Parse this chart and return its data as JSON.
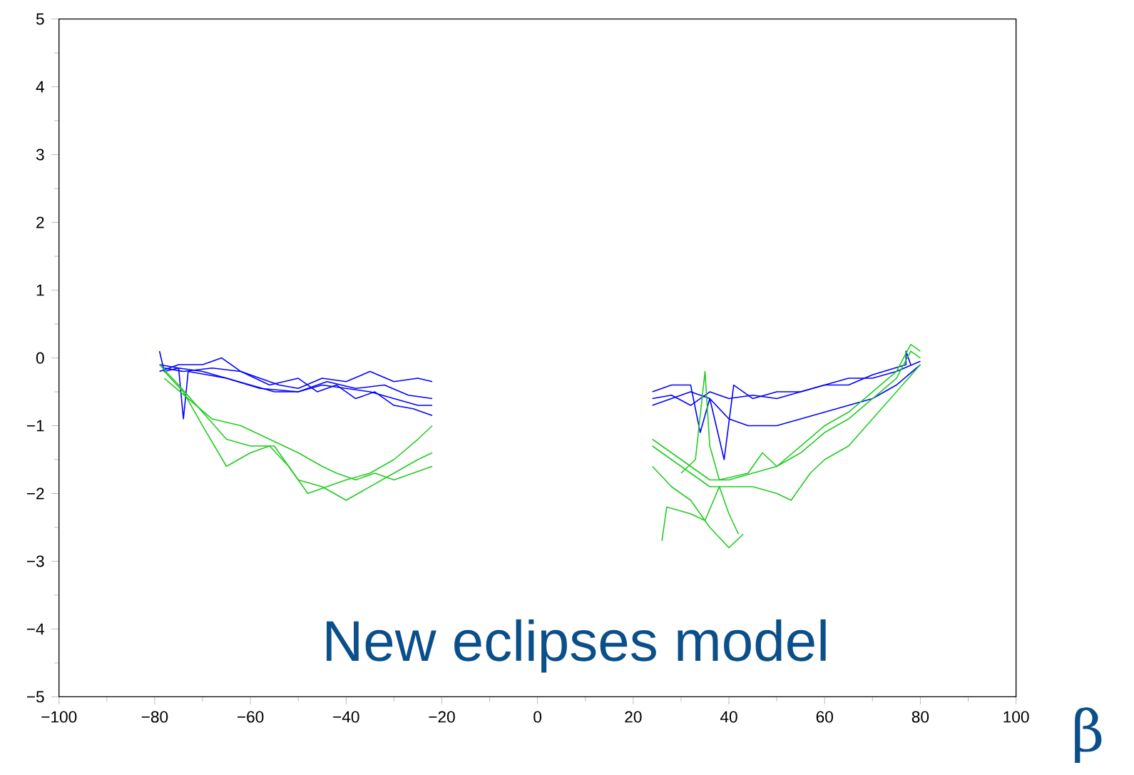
{
  "chart_data": {
    "type": "line",
    "xlabel": "β",
    "annotations": [
      "New eclipses model"
    ],
    "xlim": [
      -100,
      100
    ],
    "ylim": [
      -5,
      5
    ],
    "xticks": [
      {
        "value": -100,
        "label": "−100"
      },
      {
        "value": -80,
        "label": "−80"
      },
      {
        "value": -60,
        "label": "−60"
      },
      {
        "value": -40,
        "label": "−40"
      },
      {
        "value": -20,
        "label": "−20"
      },
      0,
      20,
      40,
      60,
      80,
      100
    ],
    "yticks": [
      {
        "value": -5,
        "label": "−5"
      },
      {
        "value": -4,
        "label": "−4"
      },
      {
        "value": -3,
        "label": "−3"
      },
      {
        "value": -2,
        "label": "−2"
      },
      {
        "value": -1,
        "label": "−1"
      },
      0,
      1,
      2,
      3,
      4,
      5
    ],
    "marker": "none",
    "line_style": "solid",
    "series": [
      {
        "color": "#0000ff",
        "x": [
          -79,
          -75,
          -70,
          -65,
          -60,
          -55,
          -50,
          -45,
          -40,
          -35,
          -30,
          -25,
          -22
        ],
        "values": [
          -0.1,
          -0.15,
          -0.2,
          -0.3,
          -0.4,
          -0.5,
          -0.5,
          -0.4,
          -0.45,
          -0.5,
          -0.6,
          -0.7,
          -0.7
        ]
      },
      {
        "color": "#0000ff",
        "x": [
          -79,
          -75,
          -70,
          -66,
          -62,
          -58,
          -54,
          -50,
          -45,
          -40,
          -35,
          -30,
          -25,
          -22
        ],
        "values": [
          -0.2,
          -0.1,
          -0.1,
          0.0,
          -0.2,
          -0.3,
          -0.4,
          -0.45,
          -0.3,
          -0.35,
          -0.2,
          -0.35,
          -0.3,
          -0.35
        ]
      },
      {
        "color": "#0000ff",
        "x": [
          -78,
          -74,
          -68,
          -62,
          -56,
          -50,
          -46,
          -42,
          -38,
          -34,
          -30,
          -26,
          -22
        ],
        "values": [
          -0.15,
          -0.2,
          -0.15,
          -0.2,
          -0.4,
          -0.3,
          -0.5,
          -0.4,
          -0.6,
          -0.5,
          -0.7,
          -0.75,
          -0.85
        ]
      },
      {
        "color": "#0000ff",
        "x": [
          -79,
          -78,
          -75,
          -74,
          -73,
          -65,
          -58,
          -50,
          -44,
          -38,
          -32,
          -27,
          -22
        ],
        "values": [
          0.1,
          -0.2,
          -0.15,
          -0.9,
          -0.2,
          -0.3,
          -0.45,
          -0.5,
          -0.35,
          -0.45,
          -0.4,
          -0.55,
          -0.6
        ]
      },
      {
        "color": "#22cc22",
        "x": [
          -79,
          -75,
          -70,
          -65,
          -60,
          -55,
          -50,
          -45,
          -40,
          -35,
          -30,
          -25,
          -22
        ],
        "values": [
          -0.1,
          -0.4,
          -0.8,
          -1.2,
          -1.3,
          -1.3,
          -1.8,
          -1.9,
          -2.1,
          -1.9,
          -1.7,
          -1.5,
          -1.4
        ]
      },
      {
        "color": "#22cc22",
        "x": [
          -78,
          -74,
          -70,
          -65,
          -60,
          -56,
          -52,
          -48,
          -44,
          -40,
          -35,
          -30,
          -25,
          -22
        ],
        "values": [
          -0.2,
          -0.5,
          -1.0,
          -1.6,
          -1.4,
          -1.3,
          -1.6,
          -2.0,
          -1.9,
          -1.8,
          -1.7,
          -1.5,
          -1.2,
          -1.0
        ]
      },
      {
        "color": "#22cc22",
        "x": [
          -78,
          -73,
          -68,
          -62,
          -56,
          -50,
          -45,
          -42,
          -38,
          -34,
          -30,
          -26,
          -22
        ],
        "values": [
          -0.3,
          -0.6,
          -0.9,
          -1.0,
          -1.2,
          -1.4,
          -1.6,
          -1.7,
          -1.8,
          -1.7,
          -1.8,
          -1.7,
          -1.6
        ]
      },
      {
        "color": "#0000ff",
        "x": [
          24,
          28,
          32,
          36,
          40,
          44,
          50,
          55,
          60,
          65,
          70,
          75,
          80
        ],
        "values": [
          -0.7,
          -0.6,
          -0.5,
          -0.6,
          -0.9,
          -1.0,
          -1.0,
          -0.9,
          -0.8,
          -0.7,
          -0.6,
          -0.4,
          -0.1
        ]
      },
      {
        "color": "#0000ff",
        "x": [
          24,
          28,
          32,
          34,
          36,
          39,
          41,
          45,
          50,
          55,
          60,
          65,
          70,
          75,
          80
        ],
        "values": [
          -0.5,
          -0.4,
          -0.4,
          -1.1,
          -0.6,
          -1.5,
          -0.4,
          -0.6,
          -0.5,
          -0.5,
          -0.4,
          -0.3,
          -0.3,
          -0.2,
          -0.05
        ]
      },
      {
        "color": "#0000ff",
        "x": [
          24,
          28,
          32,
          36,
          40,
          45,
          50,
          55,
          60,
          65,
          70,
          77,
          77,
          78
        ],
        "values": [
          -0.6,
          -0.55,
          -0.7,
          -0.5,
          -0.6,
          -0.55,
          -0.6,
          -0.5,
          -0.4,
          -0.4,
          -0.25,
          -0.1,
          0.1,
          -0.1
        ]
      },
      {
        "color": "#22cc22",
        "x": [
          24,
          28,
          32,
          36,
          40,
          45,
          50,
          55,
          60,
          65,
          70,
          75,
          78,
          80
        ],
        "values": [
          -1.2,
          -1.4,
          -1.6,
          -1.8,
          -1.8,
          -1.7,
          -1.6,
          -1.4,
          -1.1,
          -0.9,
          -0.6,
          -0.3,
          0.1,
          0.0
        ]
      },
      {
        "color": "#22cc22",
        "x": [
          24,
          28,
          32,
          36,
          40,
          45,
          50,
          53,
          57,
          60,
          65,
          70,
          75,
          80
        ],
        "values": [
          -1.3,
          -1.5,
          -1.7,
          -1.9,
          -1.9,
          -1.9,
          -2.0,
          -2.1,
          -1.7,
          -1.5,
          -1.3,
          -0.9,
          -0.5,
          -0.1
        ]
      },
      {
        "color": "#22cc22",
        "x": [
          24,
          28,
          32,
          36,
          40,
          43
        ],
        "values": [
          -1.6,
          -1.9,
          -2.1,
          -2.5,
          -2.8,
          -2.6
        ]
      },
      {
        "color": "#22cc22",
        "x": [
          26,
          27,
          32,
          35,
          38,
          40,
          42
        ],
        "values": [
          -2.7,
          -2.2,
          -2.3,
          -2.4,
          -1.9,
          -2.3,
          -2.6
        ]
      },
      {
        "color": "#22cc22",
        "x": [
          30,
          33,
          35,
          36,
          38,
          44,
          47,
          50,
          55,
          60,
          65,
          70,
          75,
          78,
          80
        ],
        "values": [
          -1.7,
          -1.5,
          -0.2,
          -1.3,
          -1.8,
          -1.7,
          -1.4,
          -1.6,
          -1.3,
          -1.0,
          -0.8,
          -0.5,
          -0.2,
          0.2,
          0.1
        ]
      }
    ]
  }
}
